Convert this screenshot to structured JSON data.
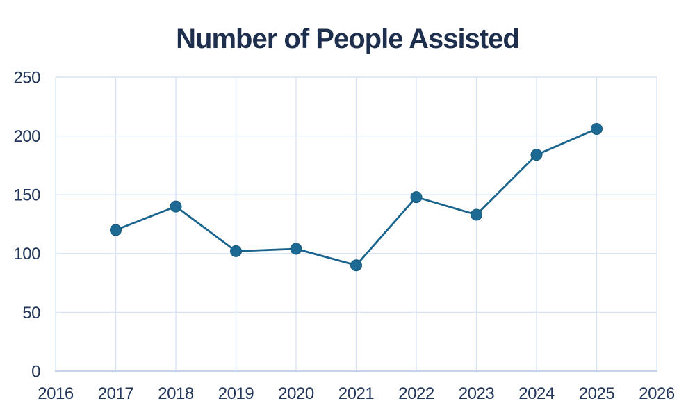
{
  "chart_data": {
    "type": "line",
    "title": "Number of People Assisted",
    "x": [
      2017,
      2018,
      2019,
      2020,
      2021,
      2022,
      2023,
      2024,
      2025
    ],
    "values": [
      120,
      140,
      102,
      104,
      90,
      148,
      133,
      184,
      206
    ],
    "xlabel": "",
    "ylabel": "",
    "xlim": [
      2016,
      2026
    ],
    "ylim": [
      0,
      250
    ],
    "x_ticks": [
      2016,
      2017,
      2018,
      2019,
      2020,
      2021,
      2022,
      2023,
      2024,
      2025,
      2026
    ],
    "y_ticks": [
      0,
      50,
      100,
      150,
      200,
      250
    ],
    "grid": true,
    "legend": false,
    "marker": "circle",
    "colors": {
      "line": "#19648e",
      "marker_fill": "#1c6a93",
      "marker_edge": "#15597e",
      "gridline": "#d7e3f4",
      "axis_line": "#b9cfe9",
      "tick_label": "#21365a",
      "title": "#1e2f4e",
      "background": "#ffffff"
    }
  }
}
